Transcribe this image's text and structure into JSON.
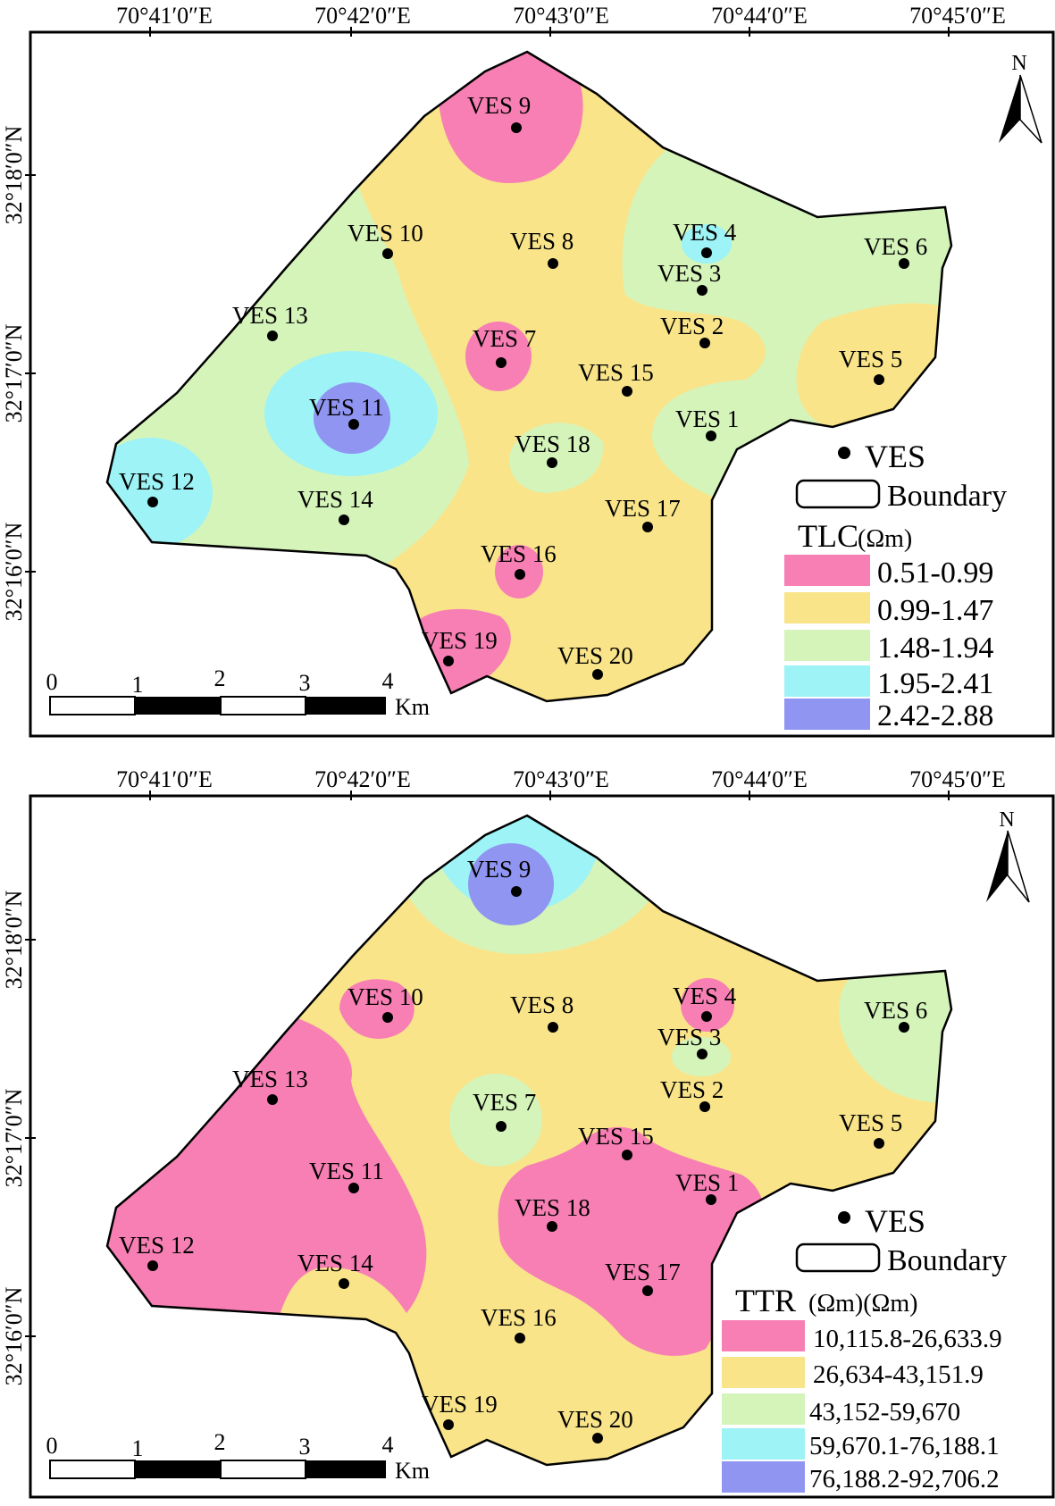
{
  "maps": [
    {
      "id": "tlc",
      "lon_labels": [
        "70°41′0″E",
        "70°42′0″E",
        "70°43′0″E",
        "70°44′0″E",
        "70°45′0″E"
      ],
      "lat_labels": [
        "32°18′0″N",
        "32°17′0″N",
        "32°16′0″N"
      ],
      "north_label": "N",
      "legend": {
        "point_label": "VES",
        "boundary_label": "Boundary",
        "title": "TLC",
        "unit": "(Ωm)",
        "classes": [
          {
            "range": "0.51-0.99",
            "color": "#f77fb4"
          },
          {
            "range": "0.99-1.47",
            "color": "#f9e48a"
          },
          {
            "range": "1.48-1.94",
            "color": "#d5f4ba"
          },
          {
            "range": "1.95-2.41",
            "color": "#9df3f5"
          },
          {
            "range": "2.42-2.88",
            "color": "#8f95f0"
          }
        ]
      },
      "scale": {
        "ticks": [
          "0",
          "1",
          "2",
          "3",
          "4"
        ],
        "unit": "Km"
      }
    },
    {
      "id": "ttr",
      "lon_labels": [
        "70°41′0″E",
        "70°42′0″E",
        "70°43′0″E",
        "70°44′0″E",
        "70°45′0″E"
      ],
      "lat_labels": [
        "32°18′0″N",
        "32°17′0″N",
        "32°16′0″N"
      ],
      "north_label": "N",
      "legend": {
        "point_label": "VES",
        "boundary_label": "Boundary",
        "title": "TTR",
        "unit": "(Ωm)(Ωm)",
        "classes": [
          {
            "range": "10,115.8-26,633.9",
            "color": "#f77fb4"
          },
          {
            "range": "26,634-43,151.9",
            "color": "#f9e48a"
          },
          {
            "range": "43,152-59,670",
            "color": "#d5f4ba"
          },
          {
            "range": "59,670.1-76,188.1",
            "color": "#9df3f5"
          },
          {
            "range": "76,188.2-92,706.2",
            "color": "#8f95f0"
          }
        ]
      },
      "scale": {
        "ticks": [
          "0",
          "1",
          "2",
          "3",
          "4"
        ],
        "unit": "Km"
      }
    }
  ],
  "stations": [
    "VES 1",
    "VES 2",
    "VES 3",
    "VES 4",
    "VES 5",
    "VES 6",
    "VES 7",
    "VES 8",
    "VES 9",
    "VES 10",
    "VES 11",
    "VES 12",
    "VES 13",
    "VES 14",
    "VES 15",
    "VES 16",
    "VES 17",
    "VES 18",
    "VES 19",
    "VES 20"
  ]
}
